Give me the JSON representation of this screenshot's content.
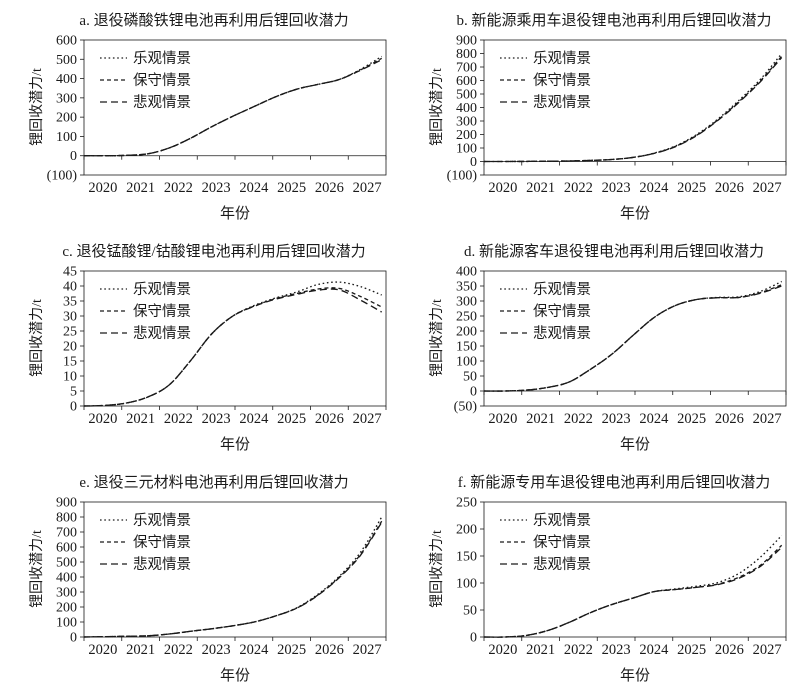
{
  "style": {
    "ink": "#1a1a1a",
    "background": "#ffffff"
  },
  "x_years": [
    2020,
    2020.5,
    2021,
    2021.5,
    2022,
    2022.5,
    2023,
    2023.5,
    2024,
    2024.5,
    2025,
    2025.5,
    2026,
    2026.5,
    2027
  ],
  "chart_data": [
    {
      "id": "a",
      "type": "line",
      "title": "a. 退役磷酸铁锂电池再利用后锂回收潜力",
      "xlabel": "年份",
      "ylabel": "锂回收潜力/t",
      "ylim": [
        -100,
        600
      ],
      "y_ticks": [
        "600",
        "500",
        "400",
        "300",
        "200",
        "100",
        "0",
        "(100)"
      ],
      "x_ticks": [
        "2020",
        "2021",
        "2022",
        "2023",
        "2024",
        "2025",
        "2026",
        "2027"
      ],
      "legend_position": "upper-left",
      "series": [
        {
          "name": "乐观情景",
          "line_style": "dotted",
          "values": [
            0,
            0,
            2,
            10,
            40,
            90,
            150,
            205,
            255,
            305,
            345,
            370,
            395,
            448,
            515
          ]
        },
        {
          "name": "保守情景",
          "line_style": "dash-small",
          "values": [
            0,
            0,
            2,
            10,
            40,
            90,
            150,
            205,
            255,
            305,
            345,
            370,
            395,
            445,
            505
          ]
        },
        {
          "name": "悲观情景",
          "line_style": "dash-long",
          "values": [
            0,
            0,
            2,
            10,
            40,
            90,
            150,
            205,
            255,
            305,
            345,
            370,
            395,
            443,
            498
          ]
        }
      ]
    },
    {
      "id": "b",
      "type": "line",
      "title": "b. 新能源乘用车退役锂电池再利用后锂回收潜力",
      "xlabel": "年份",
      "ylabel": "锂回收潜力/t",
      "ylim": [
        -100,
        900
      ],
      "y_ticks": [
        "900",
        "800",
        "700",
        "600",
        "500",
        "400",
        "300",
        "200",
        "100",
        "0",
        "(100)"
      ],
      "x_ticks": [
        "2020",
        "2021",
        "2022",
        "2023",
        "2024",
        "2025",
        "2026",
        "2027"
      ],
      "legend_position": "upper-left",
      "series": [
        {
          "name": "乐观情景",
          "line_style": "dotted",
          "values": [
            0,
            0,
            1,
            2,
            4,
            8,
            15,
            30,
            62,
            115,
            200,
            315,
            455,
            610,
            800
          ]
        },
        {
          "name": "保守情景",
          "line_style": "dash-small",
          "values": [
            0,
            0,
            1,
            2,
            4,
            8,
            15,
            30,
            60,
            112,
            195,
            308,
            445,
            598,
            780
          ]
        },
        {
          "name": "悲观情景",
          "line_style": "dash-long",
          "values": [
            0,
            0,
            1,
            2,
            4,
            8,
            15,
            30,
            60,
            110,
            192,
            305,
            440,
            592,
            770
          ]
        }
      ]
    },
    {
      "id": "c",
      "type": "line",
      "title": "c. 退役锰酸锂/钴酸锂电池再利用后锂回收潜力",
      "xlabel": "年份",
      "ylabel": "锂回收潜力/t",
      "ylim": [
        0,
        45
      ],
      "y_ticks": [
        "45",
        "40",
        "35",
        "30",
        "25",
        "20",
        "15",
        "10",
        "5",
        "0"
      ],
      "x_ticks": [
        "2020",
        "2021",
        "2022",
        "2023",
        "2024",
        "2025",
        "2026",
        "2027"
      ],
      "legend_position": "upper-left",
      "series": [
        {
          "name": "乐观情景",
          "line_style": "dotted",
          "values": [
            0,
            0.2,
            1,
            3,
            7,
            15,
            24,
            30,
            33.5,
            36,
            38,
            40.5,
            41.3,
            39.8,
            37
          ]
        },
        {
          "name": "保守情景",
          "line_style": "dash-small",
          "values": [
            0,
            0.2,
            1,
            3,
            7,
            15,
            24,
            30,
            33.3,
            35.8,
            37.5,
            39,
            39.2,
            36.5,
            33
          ]
        },
        {
          "name": "悲观情景",
          "line_style": "dash-long",
          "values": [
            0,
            0.2,
            1,
            3,
            7,
            15,
            24,
            30,
            33.2,
            35.6,
            37.2,
            38.6,
            38.7,
            35.3,
            31.3
          ]
        }
      ]
    },
    {
      "id": "d",
      "type": "line",
      "title": "d. 新能源客车退役锂电池再利用后锂回收潜力",
      "xlabel": "年份",
      "ylabel": "锂回收潜力/t",
      "ylim": [
        -50,
        400
      ],
      "y_ticks": [
        "400",
        "350",
        "300",
        "250",
        "200",
        "150",
        "100",
        "50",
        "0",
        "(50)"
      ],
      "x_ticks": [
        "2020",
        "2021",
        "2022",
        "2023",
        "2024",
        "2025",
        "2026",
        "2027"
      ],
      "legend_position": "upper-left",
      "series": [
        {
          "name": "乐观情景",
          "line_style": "dotted",
          "values": [
            0,
            0,
            3,
            12,
            30,
            72,
            122,
            185,
            245,
            285,
            305,
            312,
            314,
            332,
            365
          ]
        },
        {
          "name": "保守情景",
          "line_style": "dash-small",
          "values": [
            0,
            0,
            3,
            12,
            30,
            72,
            122,
            185,
            245,
            285,
            305,
            311,
            312,
            328,
            354
          ]
        },
        {
          "name": "悲观情景",
          "line_style": "dash-long",
          "values": [
            0,
            0,
            3,
            12,
            30,
            72,
            122,
            185,
            245,
            285,
            305,
            311,
            312,
            326,
            350
          ]
        }
      ]
    },
    {
      "id": "e",
      "type": "line",
      "title": "e. 退役三元材料电池再利用后锂回收潜力",
      "xlabel": "年份",
      "ylabel": "锂回收潜力/t",
      "ylim": [
        0,
        900
      ],
      "y_ticks": [
        "900",
        "800",
        "700",
        "600",
        "500",
        "400",
        "300",
        "200",
        "100",
        "0"
      ],
      "x_ticks": [
        "2020",
        "2021",
        "2022",
        "2023",
        "2024",
        "2025",
        "2026",
        "2027"
      ],
      "legend_position": "upper-left",
      "series": [
        {
          "name": "乐观情景",
          "line_style": "dotted",
          "values": [
            0,
            2,
            5,
            8,
            20,
            38,
            55,
            75,
            100,
            140,
            195,
            285,
            405,
            565,
            800
          ]
        },
        {
          "name": "保守情景",
          "line_style": "dash-small",
          "values": [
            0,
            2,
            5,
            8,
            20,
            38,
            55,
            75,
            100,
            140,
            193,
            280,
            398,
            550,
            772
          ]
        },
        {
          "name": "悲观情景",
          "line_style": "dash-long",
          "values": [
            0,
            2,
            5,
            8,
            20,
            38,
            55,
            75,
            100,
            140,
            192,
            278,
            395,
            545,
            765
          ]
        }
      ]
    },
    {
      "id": "f",
      "type": "line",
      "title": "f. 新能源专用车退役锂电池再利用后锂回收潜力",
      "xlabel": "年份",
      "ylabel": "锂回收潜力/t",
      "ylim": [
        0,
        250
      ],
      "y_ticks": [
        "250",
        "200",
        "150",
        "100",
        "50",
        "0"
      ],
      "x_ticks": [
        "2020",
        "2021",
        "2022",
        "2023",
        "2024",
        "2025",
        "2026",
        "2027"
      ],
      "legend_position": "upper-left",
      "series": [
        {
          "name": "乐观情景",
          "line_style": "dotted",
          "values": [
            0,
            0,
            3,
            12,
            27,
            45,
            60,
            72,
            84,
            89,
            94,
            101,
            118,
            148,
            188
          ]
        },
        {
          "name": "保守情景",
          "line_style": "dash-small",
          "values": [
            0,
            0,
            3,
            12,
            27,
            45,
            60,
            72,
            84,
            88,
            92,
            98,
            111,
            133,
            170
          ]
        },
        {
          "name": "悲观情景",
          "line_style": "dash-long",
          "values": [
            0,
            0,
            3,
            12,
            27,
            45,
            60,
            72,
            84,
            88,
            92,
            97,
            109,
            131,
            166
          ]
        }
      ]
    }
  ]
}
